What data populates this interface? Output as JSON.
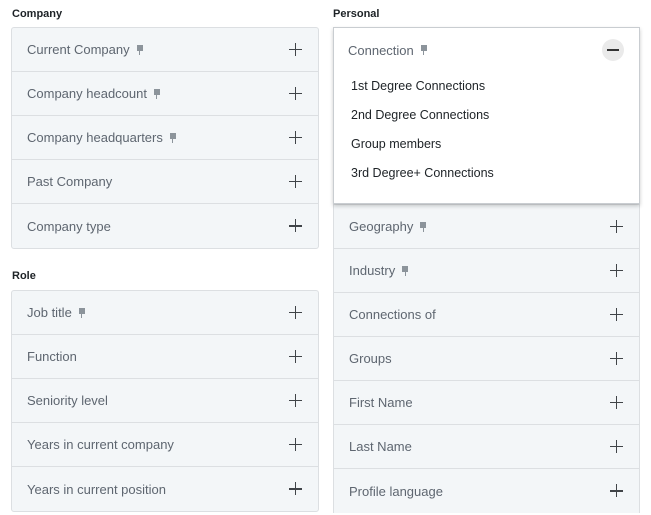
{
  "company": {
    "label": "Company",
    "items": [
      {
        "label": "Current Company",
        "pinned": true
      },
      {
        "label": "Company headcount",
        "pinned": true
      },
      {
        "label": "Company headquarters",
        "pinned": true
      },
      {
        "label": "Past Company",
        "pinned": false
      },
      {
        "label": "Company type",
        "pinned": false
      }
    ]
  },
  "role": {
    "label": "Role",
    "items": [
      {
        "label": "Job title",
        "pinned": true
      },
      {
        "label": "Function",
        "pinned": false
      },
      {
        "label": "Seniority level",
        "pinned": false
      },
      {
        "label": "Years in current company",
        "pinned": false
      },
      {
        "label": "Years in current position",
        "pinned": false
      }
    ]
  },
  "personal": {
    "label": "Personal",
    "expanded": {
      "label": "Connection",
      "pinned": true,
      "options": [
        "1st Degree Connections",
        "2nd Degree Connections",
        "Group members",
        "3rd Degree+ Connections"
      ]
    },
    "items": [
      {
        "label": "Geography",
        "pinned": true
      },
      {
        "label": "Industry",
        "pinned": true
      },
      {
        "label": "Connections of",
        "pinned": false
      },
      {
        "label": "Groups",
        "pinned": false
      },
      {
        "label": "First Name",
        "pinned": false
      },
      {
        "label": "Last Name",
        "pinned": false
      },
      {
        "label": "Profile language",
        "pinned": false
      }
    ]
  },
  "colors": {
    "row_bg": "#f3f6f8",
    "border": "#dcdfe2",
    "text": "#5e6670"
  }
}
